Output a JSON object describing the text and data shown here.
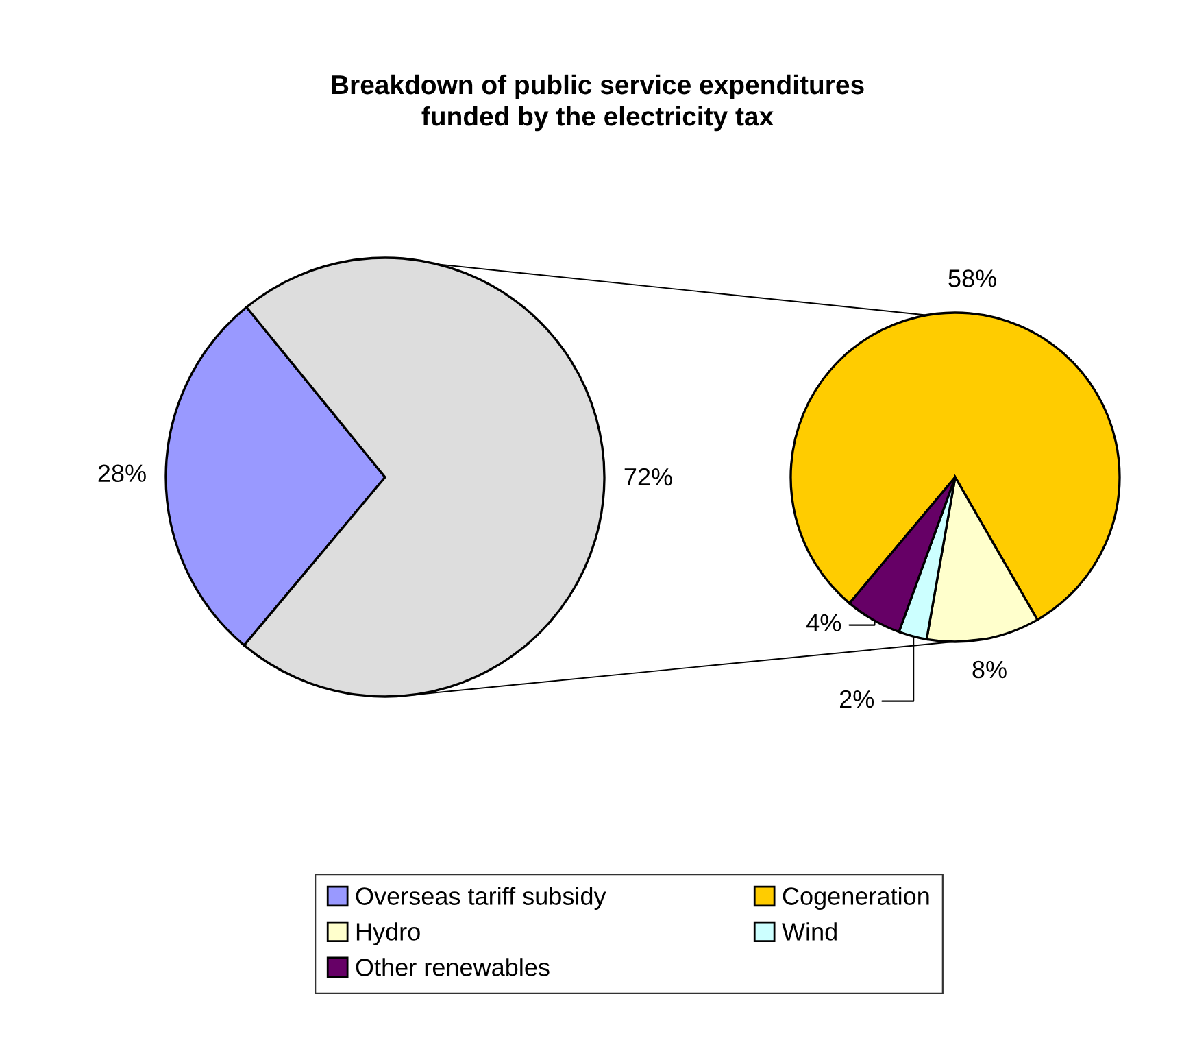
{
  "chart_data": [
    {
      "type": "pie",
      "title": "Breakdown of public service expenditures\nfunded by the electricity tax",
      "categories": [
        "Overseas tariff subsidy",
        null
      ],
      "values": [
        28,
        72
      ],
      "colors": [
        "#9999ff",
        "#dddddd"
      ],
      "value_labels": [
        "28%",
        "72%"
      ],
      "legend": "bottom"
    },
    {
      "type": "pie",
      "categories": [
        "Cogeneration",
        "Hydro",
        "Wind",
        "Other renewables"
      ],
      "values": [
        58,
        8,
        2,
        4
      ],
      "colors": [
        "#ffcc00",
        "#ffffcc",
        "#ccffff",
        "#660066"
      ],
      "value_labels": [
        "58%",
        "8%",
        "2%",
        "4%"
      ],
      "legend": "bottom"
    }
  ]
}
